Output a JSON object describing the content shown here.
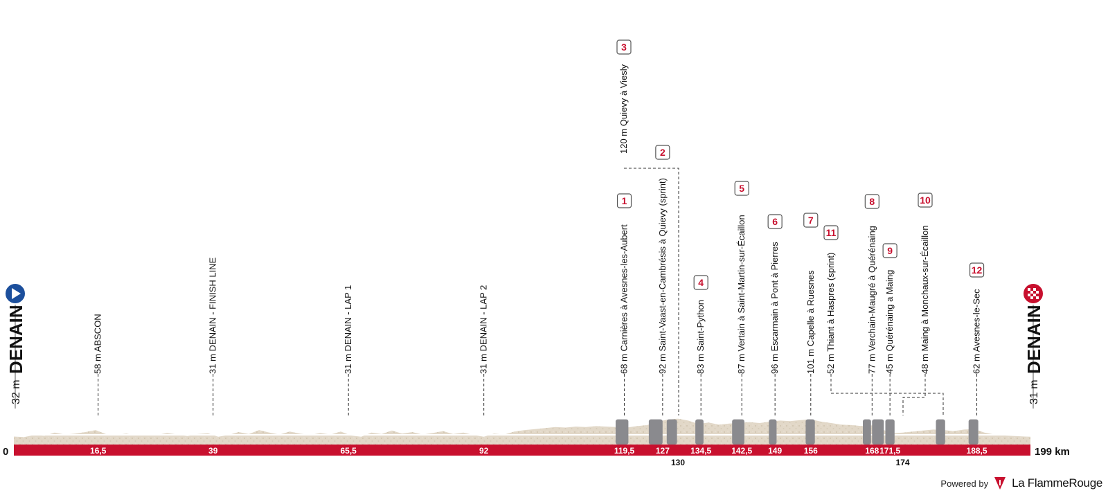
{
  "chart_data": {
    "type": "area",
    "title": "",
    "xlabel": "",
    "ylabel": "",
    "xlim": [
      0,
      199
    ],
    "ylim": [
      0,
      250
    ],
    "units": {
      "x": "km",
      "y": "m"
    },
    "start": {
      "name": "DENAIN",
      "altitude": "32 m",
      "icon": "play-icon"
    },
    "finish": {
      "name": "DENAIN",
      "altitude": "31 m",
      "icon": "checkered-flag-icon"
    },
    "axis": {
      "zero_label": "0",
      "end_label": "199 km"
    },
    "waypoints": [
      {
        "km": 16.5,
        "km_label": "16,5",
        "label": "58 m ABSCON"
      },
      {
        "km": 39,
        "km_label": "39",
        "label": "31 m DENAIN - FINISH LINE"
      },
      {
        "km": 65.5,
        "km_label": "65,5",
        "label": "31 m DENAIN - LAP 1"
      },
      {
        "km": 92,
        "km_label": "92",
        "label": "31 m DENAIN - LAP 2"
      },
      {
        "km": 119.5,
        "km_label": "119,5",
        "label": "68 m Carnières à Avesnes-les-Aubert",
        "sector": "1"
      },
      {
        "km": 127,
        "km_label": "127",
        "label": "92 m Saint-Vaast-en-Cambrésis à Quievy (sprint)",
        "sector": "2"
      },
      {
        "km": 130,
        "km_label": "130",
        "label": "120 m Quievy à Viesly",
        "sector": "3"
      },
      {
        "km": 134.5,
        "km_label": "134,5",
        "label": "83 m Saint-Python",
        "sector": "4"
      },
      {
        "km": 142.5,
        "km_label": "142,5",
        "label": "87 m Vertain à Saint-Martin-sur-Écaillon",
        "sector": "5"
      },
      {
        "km": 149,
        "km_label": "149",
        "label": "96 m Escarmain à Pont à Pierres",
        "sector": "6"
      },
      {
        "km": 156,
        "km_label": "156",
        "label": "101 m Capelle à Ruesnes",
        "sector": "7"
      },
      {
        "km": 168,
        "km_label": "168",
        "label": "77 m Verchain-Maugré à Quérénaing",
        "sector": "8"
      },
      {
        "km": 171.5,
        "km_label": "171,5",
        "label": "45 m Quérénaing a Maing",
        "sector": "9"
      },
      {
        "km": 174,
        "km_label": "174",
        "label": "48 m Maing à Monchaux-sur-Écaillon",
        "sector": "10"
      },
      {
        "km": 160,
        "km_label": "",
        "label": "52 m Thiant à Haspres (sprint)",
        "sector": "11"
      },
      {
        "km": 188.5,
        "km_label": "188,5",
        "label": "62 m Avesnes-le-Sec",
        "sector": "12"
      }
    ],
    "cobble_sectors": [
      {
        "from": 117.8,
        "to": 120.3
      },
      {
        "from": 124.3,
        "to": 127.0
      },
      {
        "from": 127.8,
        "to": 129.8
      },
      {
        "from": 133.4,
        "to": 135.0
      },
      {
        "from": 140.6,
        "to": 143.0
      },
      {
        "from": 147.8,
        "to": 149.3
      },
      {
        "from": 155.0,
        "to": 156.8
      },
      {
        "from": 166.2,
        "to": 167.8
      },
      {
        "from": 168.0,
        "to": 170.3
      },
      {
        "from": 170.6,
        "to": 172.4
      },
      {
        "from": 180.5,
        "to": 182.3
      },
      {
        "from": 186.9,
        "to": 188.8
      }
    ],
    "profile": {
      "x": [
        0,
        2,
        4,
        6,
        8,
        10,
        12,
        14,
        16,
        18,
        20,
        22,
        24,
        26,
        28,
        30,
        32,
        34,
        36,
        38,
        40,
        42,
        44,
        46,
        48,
        50,
        52,
        54,
        56,
        58,
        60,
        62,
        64,
        66,
        68,
        70,
        72,
        74,
        76,
        78,
        80,
        82,
        84,
        86,
        88,
        90,
        92,
        94,
        96,
        98,
        100,
        102,
        104,
        106,
        108,
        110,
        112,
        114,
        116,
        118,
        120,
        122,
        124,
        126,
        128,
        130,
        132,
        134,
        136,
        138,
        140,
        142,
        144,
        146,
        148,
        150,
        152,
        154,
        156,
        158,
        160,
        162,
        164,
        166,
        168,
        170,
        172,
        174,
        176,
        178,
        180,
        182,
        184,
        186,
        188,
        190,
        192,
        194,
        196,
        198,
        199
      ],
      "y": [
        32,
        30,
        38,
        35,
        48,
        40,
        44,
        50,
        58,
        42,
        38,
        44,
        36,
        40,
        38,
        46,
        40,
        34,
        42,
        45,
        31,
        38,
        50,
        42,
        58,
        48,
        40,
        52,
        44,
        38,
        46,
        40,
        52,
        36,
        31,
        48,
        42,
        56,
        44,
        50,
        40,
        46,
        54,
        42,
        48,
        38,
        31,
        44,
        40,
        52,
        58,
        62,
        66,
        70,
        68,
        72,
        70,
        74,
        72,
        70,
        68,
        74,
        78,
        92,
        100,
        104,
        96,
        83,
        88,
        80,
        84,
        87,
        90,
        86,
        92,
        96,
        94,
        98,
        101,
        92,
        86,
        80,
        78,
        74,
        77,
        60,
        45,
        48,
        52,
        56,
        60,
        58,
        54,
        60,
        62,
        48,
        40,
        36,
        34,
        32,
        31
      ]
    }
  },
  "branding": {
    "powered_by": "Powered by",
    "name": "La FlammeRouge",
    "logo_icon": "flamme-rouge-flag-icon"
  }
}
